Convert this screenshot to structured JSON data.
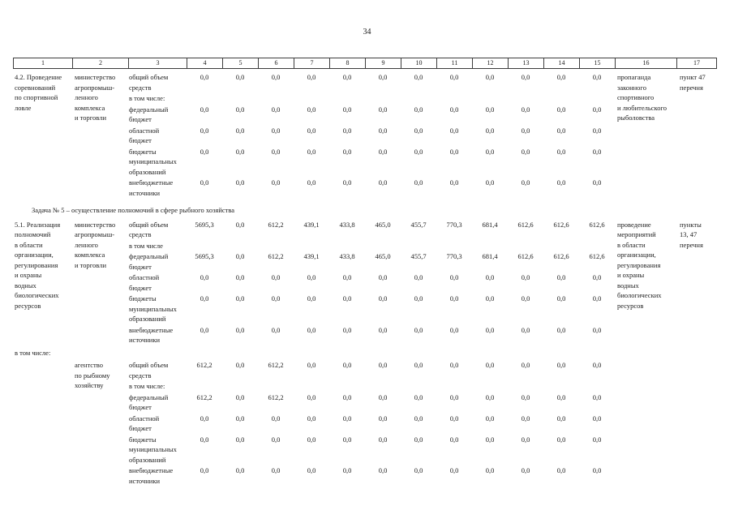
{
  "page_number": "34",
  "columns": [
    "1",
    "2",
    "3",
    "4",
    "5",
    "6",
    "7",
    "8",
    "9",
    "10",
    "11",
    "12",
    "13",
    "14",
    "15",
    "16",
    "17"
  ],
  "task_heading": "Задача № 5 – осуществление полномочий в сфере рыбного хозяйства",
  "between_label": "в том числе:",
  "rows": {
    "r42": {
      "name": "4.2. Проведение\nсоревнований\nпо спортивной\nловле",
      "executor": "министерство\nагропромыш-\nленного\nкомплекса\nи торговли",
      "result": "пропаганда\nзаконного\nспортивного\nи любительского\nрыболовства",
      "ref": "пункт 47\nперечня",
      "subrows": [
        {
          "label": "общий объем\nсредств",
          "values": [
            "0,0",
            "0,0",
            "0,0",
            "0,0",
            "0,0",
            "0,0",
            "0,0",
            "0,0",
            "0,0",
            "0,0",
            "0,0",
            "0,0"
          ]
        },
        {
          "label": "в том числе:",
          "values": []
        },
        {
          "label": "федеральный\nбюджет",
          "values": [
            "0,0",
            "0,0",
            "0,0",
            "0,0",
            "0,0",
            "0,0",
            "0,0",
            "0,0",
            "0,0",
            "0,0",
            "0,0",
            "0,0"
          ]
        },
        {
          "label": "областной\nбюджет",
          "values": [
            "0,0",
            "0,0",
            "0,0",
            "0,0",
            "0,0",
            "0,0",
            "0,0",
            "0,0",
            "0,0",
            "0,0",
            "0,0",
            "0,0"
          ]
        },
        {
          "label": "бюджеты\nмуниципальных\nобразований",
          "values": [
            "0,0",
            "0,0",
            "0,0",
            "0,0",
            "0,0",
            "0,0",
            "0,0",
            "0,0",
            "0,0",
            "0,0",
            "0,0",
            "0,0"
          ]
        },
        {
          "label": "внебюджетные\nисточники",
          "values": [
            "0,0",
            "0,0",
            "0,0",
            "0,0",
            "0,0",
            "0,0",
            "0,0",
            "0,0",
            "0,0",
            "0,0",
            "0,0",
            "0,0"
          ]
        }
      ]
    },
    "r51": {
      "name": "5.1. Реализация\nполномочий\nв области\nорганизации,\nрегулирования\nи охраны\nводных\nбиологических\nресурсов",
      "executor": "министерство\nагропромыш-\nленного\nкомплекса\nи торговли",
      "result": "проведение\nмероприятий\nв области\nорганизации,\nрегулирования\nи охраны\nводных\nбиологических\nресурсов",
      "ref": "пункты\n13, 47\nперечня",
      "subrows": [
        {
          "label": "общий объем\nсредств",
          "values": [
            "5695,3",
            "0,0",
            "612,2",
            "439,1",
            "433,8",
            "465,0",
            "455,7",
            "770,3",
            "681,4",
            "612,6",
            "612,6",
            "612,6"
          ]
        },
        {
          "label": "в том числе",
          "values": []
        },
        {
          "label": "федеральный\nбюджет",
          "values": [
            "5695,3",
            "0,0",
            "612,2",
            "439,1",
            "433,8",
            "465,0",
            "455,7",
            "770,3",
            "681,4",
            "612,6",
            "612,6",
            "612,6"
          ]
        },
        {
          "label": "областной\nбюджет",
          "values": [
            "0,0",
            "0,0",
            "0,0",
            "0,0",
            "0,0",
            "0,0",
            "0,0",
            "0,0",
            "0,0",
            "0,0",
            "0,0",
            "0,0"
          ]
        },
        {
          "label": "бюджеты\nмуниципальных\nобразований",
          "values": [
            "0,0",
            "0,0",
            "0,0",
            "0,0",
            "0,0",
            "0,0",
            "0,0",
            "0,0",
            "0,0",
            "0,0",
            "0,0",
            "0,0"
          ]
        },
        {
          "label": "внебюджетные\nисточники",
          "values": [
            "0,0",
            "0,0",
            "0,0",
            "0,0",
            "0,0",
            "0,0",
            "0,0",
            "0,0",
            "0,0",
            "0,0",
            "0,0",
            "0,0"
          ]
        }
      ]
    },
    "agency": {
      "name": "",
      "executor": "агентство\nпо рыбному\nхозяйству",
      "result": "",
      "ref": "",
      "subrows": [
        {
          "label": "общий объем\nсредств",
          "values": [
            "612,2",
            "0,0",
            "612,2",
            "0,0",
            "0,0",
            "0,0",
            "0,0",
            "0,0",
            "0,0",
            "0,0",
            "0,0",
            "0,0"
          ]
        },
        {
          "label": "в том числе:",
          "values": []
        },
        {
          "label": "федеральный\nбюджет",
          "values": [
            "612,2",
            "0,0",
            "612,2",
            "0,0",
            "0,0",
            "0,0",
            "0,0",
            "0,0",
            "0,0",
            "0,0",
            "0,0",
            "0,0"
          ]
        },
        {
          "label": "областной\nбюджет",
          "values": [
            "0,0",
            "0,0",
            "0,0",
            "0,0",
            "0,0",
            "0,0",
            "0,0",
            "0,0",
            "0,0",
            "0,0",
            "0,0",
            "0,0"
          ]
        },
        {
          "label": "бюджеты\nмуниципальных\nобразований",
          "values": [
            "0,0",
            "0,0",
            "0,0",
            "0,0",
            "0,0",
            "0,0",
            "0,0",
            "0,0",
            "0,0",
            "0,0",
            "0,0",
            "0,0"
          ]
        },
        {
          "label": "внебюджетные\nисточники",
          "values": [
            "0,0",
            "0,0",
            "0,0",
            "0,0",
            "0,0",
            "0,0",
            "0,0",
            "0,0",
            "0,0",
            "0,0",
            "0,0",
            "0,0"
          ]
        }
      ]
    }
  }
}
